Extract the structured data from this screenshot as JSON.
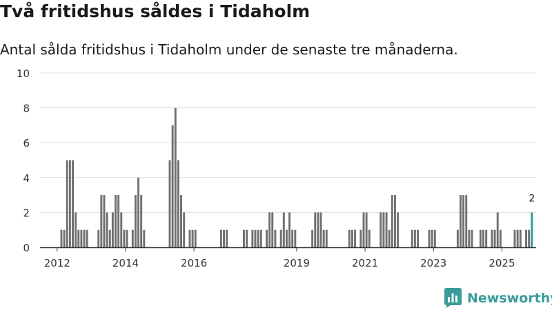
{
  "header": {
    "title": "Två fritidshus såldes i Tidaholm",
    "subtitle": "Antal sålda fritidshus i Tidaholm under de senaste tre månaderna."
  },
  "brand": {
    "name": "Newsworthy"
  },
  "colors": {
    "bar": "#707074",
    "highlight": "#2a9d9a",
    "grid": "#dddddd",
    "axis": "#333333"
  },
  "chart_data": {
    "type": "bar",
    "ylim": [
      0,
      10
    ],
    "yticks": [
      0,
      2,
      4,
      6,
      8,
      10
    ],
    "xtick_labels": [
      "2012",
      "2014",
      "2016",
      "2019",
      "2021",
      "2023",
      "2025"
    ],
    "grid": true,
    "x_start": "2011-07",
    "x_end": "2026-01",
    "series": [
      {
        "values": [
          {
            "x": "2012-02",
            "y": 1
          },
          {
            "x": "2012-03",
            "y": 1
          },
          {
            "x": "2012-04",
            "y": 5
          },
          {
            "x": "2012-05",
            "y": 5
          },
          {
            "x": "2012-06",
            "y": 5
          },
          {
            "x": "2012-07",
            "y": 2
          },
          {
            "x": "2012-08",
            "y": 1
          },
          {
            "x": "2012-09",
            "y": 1
          },
          {
            "x": "2012-10",
            "y": 1
          },
          {
            "x": "2012-11",
            "y": 1
          },
          {
            "x": "2013-03",
            "y": 1
          },
          {
            "x": "2013-04",
            "y": 3
          },
          {
            "x": "2013-05",
            "y": 3
          },
          {
            "x": "2013-06",
            "y": 2
          },
          {
            "x": "2013-07",
            "y": 1
          },
          {
            "x": "2013-08",
            "y": 2
          },
          {
            "x": "2013-09",
            "y": 3
          },
          {
            "x": "2013-10",
            "y": 3
          },
          {
            "x": "2013-11",
            "y": 2
          },
          {
            "x": "2013-12",
            "y": 1
          },
          {
            "x": "2014-01",
            "y": 1
          },
          {
            "x": "2014-03",
            "y": 1
          },
          {
            "x": "2014-04",
            "y": 3
          },
          {
            "x": "2014-05",
            "y": 4
          },
          {
            "x": "2014-06",
            "y": 3
          },
          {
            "x": "2014-07",
            "y": 1
          },
          {
            "x": "2015-04",
            "y": 5
          },
          {
            "x": "2015-05",
            "y": 7
          },
          {
            "x": "2015-06",
            "y": 8
          },
          {
            "x": "2015-07",
            "y": 5
          },
          {
            "x": "2015-08",
            "y": 3
          },
          {
            "x": "2015-09",
            "y": 2
          },
          {
            "x": "2015-11",
            "y": 1
          },
          {
            "x": "2015-12",
            "y": 1
          },
          {
            "x": "2016-01",
            "y": 1
          },
          {
            "x": "2016-10",
            "y": 1
          },
          {
            "x": "2016-11",
            "y": 1
          },
          {
            "x": "2016-12",
            "y": 1
          },
          {
            "x": "2017-06",
            "y": 1
          },
          {
            "x": "2017-07",
            "y": 1
          },
          {
            "x": "2017-09",
            "y": 1
          },
          {
            "x": "2017-10",
            "y": 1
          },
          {
            "x": "2017-11",
            "y": 1
          },
          {
            "x": "2017-12",
            "y": 1
          },
          {
            "x": "2018-02",
            "y": 1
          },
          {
            "x": "2018-03",
            "y": 2
          },
          {
            "x": "2018-04",
            "y": 2
          },
          {
            "x": "2018-05",
            "y": 1
          },
          {
            "x": "2018-07",
            "y": 1
          },
          {
            "x": "2018-08",
            "y": 2
          },
          {
            "x": "2018-09",
            "y": 1
          },
          {
            "x": "2018-10",
            "y": 2
          },
          {
            "x": "2018-11",
            "y": 1
          },
          {
            "x": "2018-12",
            "y": 1
          },
          {
            "x": "2019-06",
            "y": 1
          },
          {
            "x": "2019-07",
            "y": 2
          },
          {
            "x": "2019-08",
            "y": 2
          },
          {
            "x": "2019-09",
            "y": 2
          },
          {
            "x": "2019-10",
            "y": 1
          },
          {
            "x": "2019-11",
            "y": 1
          },
          {
            "x": "2020-07",
            "y": 1
          },
          {
            "x": "2020-08",
            "y": 1
          },
          {
            "x": "2020-09",
            "y": 1
          },
          {
            "x": "2020-11",
            "y": 1
          },
          {
            "x": "2020-12",
            "y": 2
          },
          {
            "x": "2021-01",
            "y": 2
          },
          {
            "x": "2021-02",
            "y": 1
          },
          {
            "x": "2021-06",
            "y": 2
          },
          {
            "x": "2021-07",
            "y": 2
          },
          {
            "x": "2021-08",
            "y": 2
          },
          {
            "x": "2021-09",
            "y": 1
          },
          {
            "x": "2021-10",
            "y": 3
          },
          {
            "x": "2021-11",
            "y": 3
          },
          {
            "x": "2021-12",
            "y": 2
          },
          {
            "x": "2022-05",
            "y": 1
          },
          {
            "x": "2022-06",
            "y": 1
          },
          {
            "x": "2022-07",
            "y": 1
          },
          {
            "x": "2022-11",
            "y": 1
          },
          {
            "x": "2022-12",
            "y": 1
          },
          {
            "x": "2023-01",
            "y": 1
          },
          {
            "x": "2023-09",
            "y": 1
          },
          {
            "x": "2023-10",
            "y": 3
          },
          {
            "x": "2023-11",
            "y": 3
          },
          {
            "x": "2023-12",
            "y": 3
          },
          {
            "x": "2024-01",
            "y": 1
          },
          {
            "x": "2024-02",
            "y": 1
          },
          {
            "x": "2024-05",
            "y": 1
          },
          {
            "x": "2024-06",
            "y": 1
          },
          {
            "x": "2024-07",
            "y": 1
          },
          {
            "x": "2024-09",
            "y": 1
          },
          {
            "x": "2024-10",
            "y": 1
          },
          {
            "x": "2024-11",
            "y": 2
          },
          {
            "x": "2024-12",
            "y": 1
          },
          {
            "x": "2025-05",
            "y": 1
          },
          {
            "x": "2025-06",
            "y": 1
          },
          {
            "x": "2025-07",
            "y": 1
          },
          {
            "x": "2025-09",
            "y": 1
          },
          {
            "x": "2025-10",
            "y": 1
          },
          {
            "x": "2025-11",
            "y": 2,
            "highlight": true,
            "label": "2"
          }
        ]
      }
    ]
  }
}
